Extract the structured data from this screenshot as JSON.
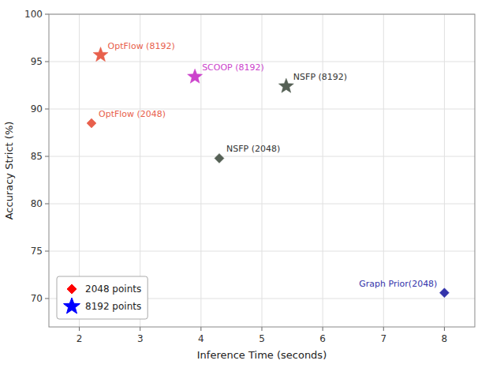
{
  "chart_data": {
    "type": "scatter",
    "x_label": "Inference Time (seconds)",
    "y_label": "Accuracy Strict (%)",
    "xlim": [
      1.5,
      8.5
    ],
    "ylim": [
      67,
      100
    ],
    "xticks": [
      2,
      3,
      4,
      5,
      6,
      7,
      8
    ],
    "yticks": [
      70,
      75,
      80,
      85,
      90,
      95,
      100
    ],
    "grid": true,
    "legend": "lower left",
    "series": [
      {
        "name": "2048 points",
        "color": "#ff0000",
        "marker": "diamond",
        "x": [
          2.2,
          4.3,
          8.0
        ],
        "values": [
          88.5,
          84.8,
          70.6
        ],
        "colors": [
          "#e8604c",
          "#556055",
          "#3333aa"
        ],
        "annotations": [
          "OptFlow (2048)",
          "NSFP (2048)",
          "Graph Prior(2048)"
        ],
        "annotation_colors": [
          "#e8604c",
          "#333333",
          "#3333aa"
        ]
      },
      {
        "name": "8192 points",
        "color": "#0000ff",
        "marker": "star",
        "x": [
          2.35,
          3.9,
          5.4
        ],
        "values": [
          95.7,
          93.4,
          92.4
        ],
        "colors": [
          "#e8604c",
          "#cc44cc",
          "#556055"
        ],
        "annotations": [
          "OptFlow (8192)",
          "SCOOP (8192)",
          "NSFP (8192)"
        ],
        "annotation_colors": [
          "#e8604c",
          "#cc44cc",
          "#333333"
        ]
      }
    ]
  }
}
